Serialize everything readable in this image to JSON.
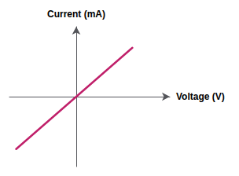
{
  "chart_data": {
    "type": "line",
    "xlabel": "Voltage (V)",
    "ylabel": "Current (mA)",
    "x": [
      -4.5,
      4.2
    ],
    "values": [
      -4.5,
      4.2
    ],
    "color": "#c0206a",
    "xlim": [
      -5,
      7
    ],
    "ylim": [
      -6,
      6
    ],
    "tick_labels": false,
    "grid": false
  }
}
